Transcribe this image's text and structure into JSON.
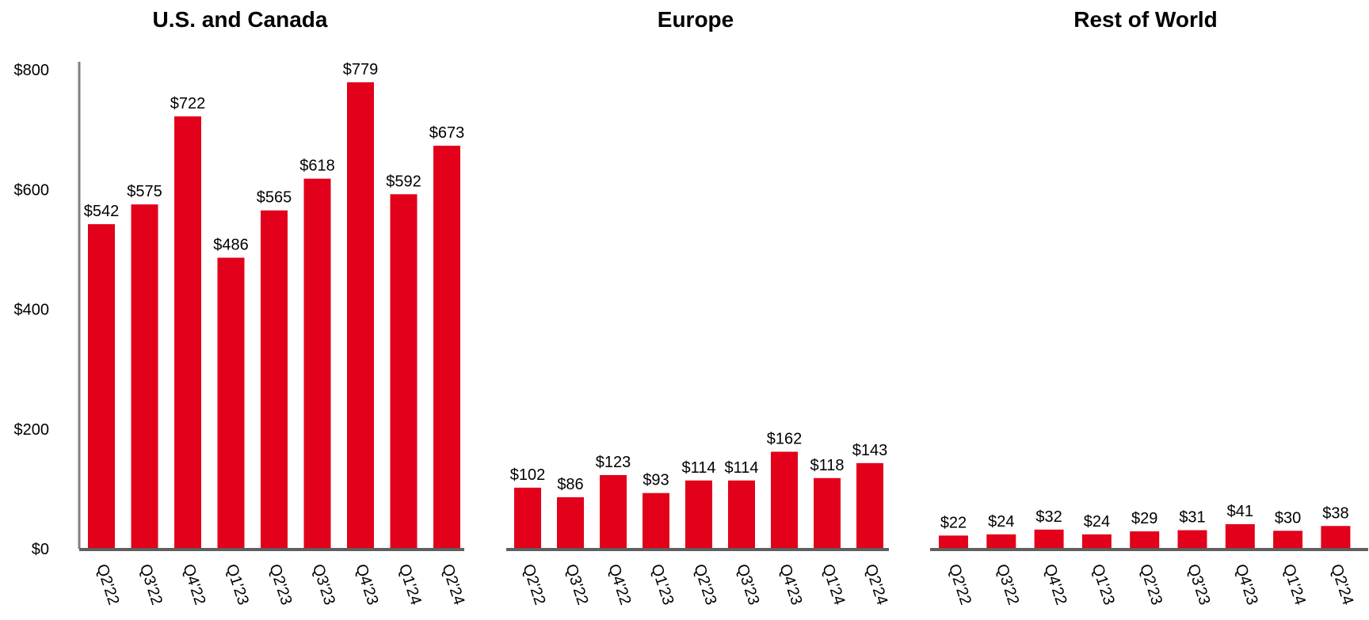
{
  "chart_data": [
    {
      "type": "bar",
      "title": "U.S. and Canada",
      "categories": [
        "Q2'22",
        "Q3'22",
        "Q4'22",
        "Q1'23",
        "Q2'23",
        "Q3'23",
        "Q4'23",
        "Q1'24",
        "Q2'24"
      ],
      "values": [
        542,
        575,
        722,
        486,
        565,
        618,
        779,
        592,
        673
      ],
      "data_labels": [
        "$542",
        "$575",
        "$722",
        "$486",
        "$565",
        "$618",
        "$779",
        "$592",
        "$673"
      ],
      "ylim": [
        0,
        800
      ],
      "yticks": [
        0,
        200,
        400,
        600,
        800
      ],
      "ytick_labels": [
        "$0",
        "$200",
        "$400",
        "$600",
        "$800"
      ],
      "grid": false,
      "color": "#E2001A"
    },
    {
      "type": "bar",
      "title": "Europe",
      "categories": [
        "Q2'22",
        "Q3'22",
        "Q4'22",
        "Q1'23",
        "Q2'23",
        "Q3'23",
        "Q4'23",
        "Q1'24",
        "Q2'24"
      ],
      "values": [
        102,
        86,
        123,
        93,
        114,
        114,
        162,
        118,
        143
      ],
      "data_labels": [
        "$102",
        "$86",
        "$123",
        "$93",
        "$114",
        "$114",
        "$162",
        "$118",
        "$143"
      ],
      "ylim": [
        0,
        800
      ],
      "grid": false,
      "color": "#E2001A"
    },
    {
      "type": "bar",
      "title": "Rest of World",
      "categories": [
        "Q2'22",
        "Q3'22",
        "Q4'22",
        "Q1'23",
        "Q2'23",
        "Q3'23",
        "Q4'23",
        "Q1'24",
        "Q2'24"
      ],
      "values": [
        22,
        24,
        32,
        24,
        29,
        31,
        41,
        30,
        38
      ],
      "data_labels": [
        "$22",
        "$24",
        "$32",
        "$24",
        "$29",
        "$31",
        "$41",
        "$30",
        "$38"
      ],
      "ylim": [
        0,
        800
      ],
      "grid": false,
      "color": "#E2001A"
    }
  ]
}
